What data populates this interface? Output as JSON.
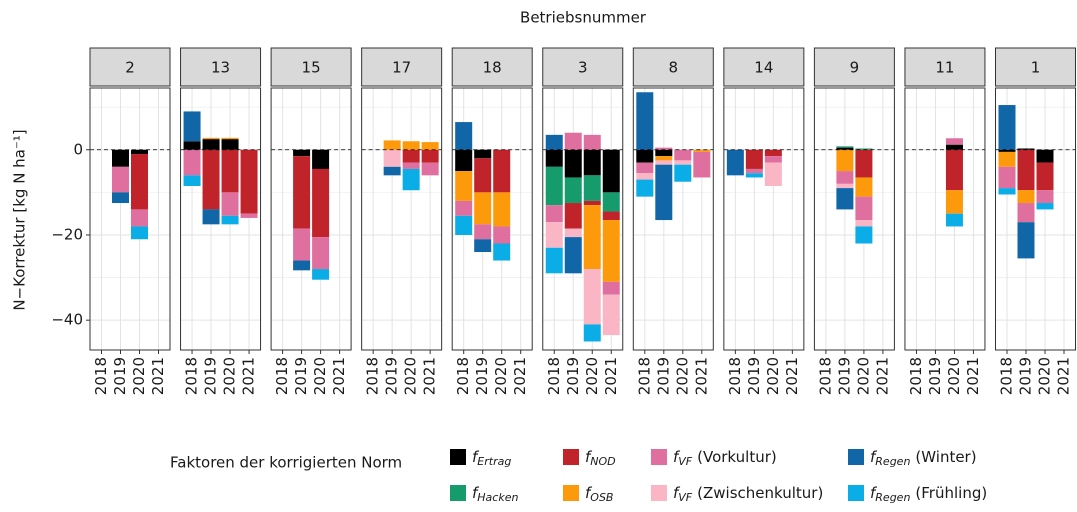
{
  "chart_data": {
    "type": "bar",
    "title": "Betriebsnummer",
    "ylabel": "N−Korrektur [kg N ha⁻¹]",
    "legend_title": "Faktoren der korrigierten Norm",
    "categories": [
      "2018",
      "2019",
      "2020",
      "2021"
    ],
    "ylim": [
      -47,
      14.5
    ],
    "yticks": [
      {
        "value": -40,
        "label": "−40"
      },
      {
        "value": -20,
        "label": "−20"
      },
      0
    ],
    "grid": true,
    "series": [
      {
        "symbol": "f",
        "subscript": "Ertrag",
        "color": "#000000"
      },
      {
        "symbol": "f",
        "subscript": "Hacken",
        "color": "#169b6d"
      },
      {
        "symbol": "f",
        "subscript": "NOD",
        "color": "#c0232a"
      },
      {
        "symbol": "f",
        "subscript": "OSB",
        "color": "#fd9a0c"
      },
      {
        "symbol": "f",
        "subscript": "VF",
        "suffix": "(Vorkultur)",
        "color": "#df6f9e"
      },
      {
        "symbol": "f",
        "subscript": "VF",
        "suffix": "(Zwischenkultur)",
        "color": "#fbb6c6"
      },
      {
        "symbol": "f",
        "subscript": "Regen",
        "suffix": "(Winter)",
        "color": "#1066a7"
      },
      {
        "symbol": "f",
        "subscript": "Regen",
        "suffix": "(Frühling)",
        "color": "#0bade6"
      }
    ],
    "facets": [
      {
        "label": "2",
        "values": [
          [
            null,
            -4,
            -1,
            null
          ],
          [
            null,
            null,
            null,
            null
          ],
          [
            null,
            null,
            -13,
            null
          ],
          [
            null,
            null,
            null,
            null
          ],
          [
            null,
            -6,
            -4,
            null
          ],
          [
            null,
            null,
            null,
            null
          ],
          [
            null,
            -2.5,
            null,
            null
          ],
          [
            null,
            null,
            -3,
            null
          ]
        ]
      },
      {
        "label": "13",
        "values": [
          [
            2,
            2.5,
            2.5,
            null
          ],
          [
            null,
            null,
            null,
            null
          ],
          [
            null,
            -14,
            -10,
            -15
          ],
          [
            null,
            0.3,
            0.3,
            null
          ],
          [
            -6,
            null,
            -5.5,
            -1
          ],
          [
            null,
            null,
            null,
            null
          ],
          [
            7,
            -3.5,
            null,
            null
          ],
          [
            -2.5,
            null,
            -2,
            null
          ]
        ]
      },
      {
        "label": "15",
        "values": [
          [
            null,
            -1.5,
            -4.5,
            null
          ],
          [
            null,
            null,
            null,
            null
          ],
          [
            null,
            -17,
            -16,
            null
          ],
          [
            null,
            null,
            null,
            null
          ],
          [
            null,
            -7.5,
            -7.5,
            null
          ],
          [
            null,
            null,
            null,
            null
          ],
          [
            null,
            -2.3,
            null,
            null
          ],
          [
            null,
            null,
            -2.5,
            null
          ]
        ]
      },
      {
        "label": "17",
        "values": [
          [
            null,
            null,
            null,
            null
          ],
          [
            null,
            null,
            null,
            null
          ],
          [
            null,
            null,
            -3,
            -3
          ],
          [
            null,
            2.2,
            2,
            1.8
          ],
          [
            null,
            null,
            -1.5,
            -3
          ],
          [
            null,
            -4,
            null,
            null
          ],
          [
            null,
            -2,
            null,
            null
          ],
          [
            null,
            null,
            -5,
            null
          ]
        ]
      },
      {
        "label": "18",
        "values": [
          [
            -5,
            -2,
            null,
            null
          ],
          [
            null,
            null,
            null,
            null
          ],
          [
            null,
            -8,
            -10,
            null
          ],
          [
            -7,
            -7.5,
            -8,
            null
          ],
          [
            -3.5,
            -3.5,
            -4,
            null
          ],
          [
            null,
            null,
            null,
            null
          ],
          [
            6.5,
            -3,
            null,
            null
          ],
          [
            -4.5,
            null,
            -4,
            null
          ]
        ]
      },
      {
        "label": "3",
        "values": [
          [
            -4,
            -6.5,
            -6,
            -10
          ],
          [
            -9,
            -6,
            -6,
            -4.5
          ],
          [
            null,
            -6,
            -1,
            -2
          ],
          [
            null,
            null,
            -15,
            -14.5
          ],
          [
            -4,
            4,
            3.5,
            -3
          ],
          [
            -6,
            -2,
            -13,
            -9.5
          ],
          [
            3.5,
            -8.5,
            null,
            null
          ],
          [
            -6,
            null,
            -4,
            null
          ]
        ]
      },
      {
        "label": "8",
        "values": [
          [
            -3,
            -1.5,
            null,
            null
          ],
          [
            null,
            null,
            null,
            null
          ],
          [
            null,
            null,
            null,
            null
          ],
          [
            null,
            -1,
            null,
            -0.5
          ],
          [
            -2.5,
            0.5,
            -2.5,
            -6
          ],
          [
            -1.5,
            -1,
            -1,
            null
          ],
          [
            13.5,
            -13,
            null,
            null
          ],
          [
            -4,
            null,
            -4,
            null
          ]
        ]
      },
      {
        "label": "14",
        "values": [
          [
            null,
            null,
            null,
            null
          ],
          [
            null,
            null,
            null,
            null
          ],
          [
            null,
            -4.5,
            -1.5,
            null
          ],
          [
            null,
            null,
            null,
            null
          ],
          [
            null,
            -1,
            -1.5,
            null
          ],
          [
            null,
            null,
            -5.5,
            null
          ],
          [
            -6,
            null,
            null,
            null
          ],
          [
            null,
            -1,
            null,
            null
          ]
        ]
      },
      {
        "label": "9",
        "values": [
          [
            null,
            0.5,
            null,
            null
          ],
          [
            null,
            0.3,
            0.3,
            null
          ],
          [
            null,
            null,
            -6.5,
            null
          ],
          [
            null,
            -5,
            -4.5,
            null
          ],
          [
            null,
            -3,
            -5.5,
            null
          ],
          [
            null,
            -1,
            -1.5,
            null
          ],
          [
            null,
            -5,
            null,
            null
          ],
          [
            null,
            null,
            -4,
            null
          ]
        ]
      },
      {
        "label": "11",
        "values": [
          [
            null,
            null,
            1.2,
            null
          ],
          [
            null,
            null,
            null,
            null
          ],
          [
            null,
            null,
            -9.5,
            null
          ],
          [
            null,
            null,
            -5.5,
            null
          ],
          [
            null,
            null,
            1.5,
            null
          ],
          [
            null,
            null,
            null,
            null
          ],
          [
            null,
            null,
            null,
            null
          ],
          [
            null,
            null,
            -3,
            null
          ]
        ]
      },
      {
        "label": "1",
        "values": [
          [
            -0.5,
            0.3,
            -3,
            null
          ],
          [
            null,
            null,
            null,
            null
          ],
          [
            null,
            -9.5,
            -6.5,
            null
          ],
          [
            -3.5,
            -3,
            null,
            null
          ],
          [
            -5,
            -4.5,
            -3,
            null
          ],
          [
            null,
            null,
            null,
            null
          ],
          [
            10.5,
            -8.5,
            null,
            null
          ],
          [
            -1.5,
            null,
            -1.5,
            null
          ]
        ]
      }
    ]
  }
}
